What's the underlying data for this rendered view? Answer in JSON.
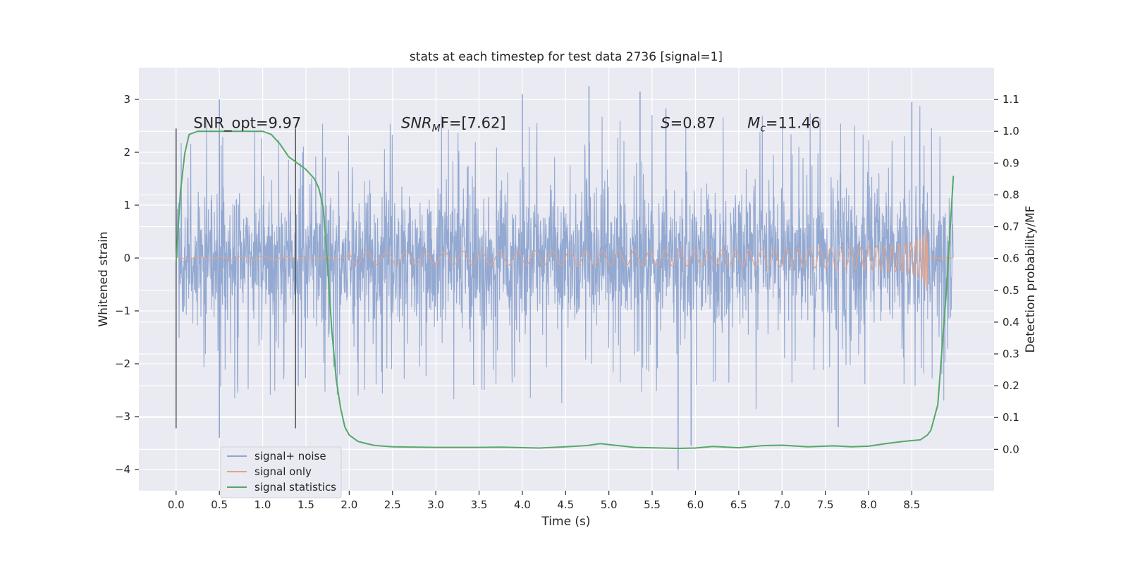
{
  "chart_data": {
    "type": "line",
    "title": "stats at each timestep for test data 2736 [signal=1]",
    "xlabel": "Time (s)",
    "ylabel": "Whitened strain",
    "y2label": "Detection probability/MF",
    "xlim": [
      -0.43,
      9.45
    ],
    "ylim": [
      -4.4,
      3.6
    ],
    "y2lim": [
      -0.13,
      1.2
    ],
    "x_ticks": [
      0.0,
      0.5,
      1.0,
      1.5,
      2.0,
      2.5,
      3.0,
      3.5,
      4.0,
      4.5,
      5.0,
      5.5,
      6.0,
      6.5,
      7.0,
      7.5,
      8.0,
      8.5
    ],
    "x_tick_labels": [
      "0.0",
      "0.5",
      "1.0",
      "1.5",
      "2.0",
      "2.5",
      "3.0",
      "3.5",
      "4.0",
      "4.5",
      "5.0",
      "5.5",
      "6.0",
      "6.5",
      "7.0",
      "7.5",
      "8.0",
      "8.5"
    ],
    "y_ticks": [
      3,
      2,
      1,
      0,
      -1,
      -2,
      -3,
      -4
    ],
    "y_tick_labels": [
      "3",
      "2",
      "1",
      "0",
      "−1",
      "−2",
      "−3",
      "−4"
    ],
    "y2_ticks": [
      1.1,
      1.0,
      0.9,
      0.8,
      0.7,
      0.6,
      0.5,
      0.4,
      0.3,
      0.2,
      0.1,
      0.0
    ],
    "y2_tick_labels": [
      "1.1",
      "1.0",
      "0.9",
      "0.8",
      "0.7",
      "0.6",
      "0.5",
      "0.4",
      "0.3",
      "0.2",
      "0.1",
      "0.0"
    ],
    "grid": true,
    "legend_position": "lower-left",
    "colors": {
      "background": "#eaeaf2",
      "grid": "#ffffff",
      "noise": "#8fa5cf",
      "signal": "#e1a38a",
      "stats": "#55a868",
      "vline": "#555555"
    },
    "series": [
      {
        "name": "signal+ noise",
        "axis": "left",
        "description_range": "noise fills roughly -1.3..1.3 with spikes to about -4.0 and 3.2",
        "peaks": [
          {
            "x": 0.5,
            "y": 3.0
          },
          {
            "x": 0.5,
            "y": -3.4
          },
          {
            "x": 4.0,
            "y": 3.1
          },
          {
            "x": 4.77,
            "y": 3.25
          },
          {
            "x": 5.36,
            "y": 3.15
          },
          {
            "x": 5.8,
            "y": -4.0
          },
          {
            "x": 5.95,
            "y": -3.55
          },
          {
            "x": 7.65,
            "y": -3.2
          },
          {
            "x": 8.5,
            "y": 2.95
          }
        ]
      },
      {
        "name": "signal only",
        "axis": "left",
        "chirp_start": 4.5,
        "chirp_end": 8.68,
        "peak_amplitude": 1.5
      },
      {
        "name": "signal statistics",
        "axis": "right",
        "x": [
          0.0,
          0.05,
          0.1,
          0.15,
          0.25,
          0.5,
          0.8,
          1.0,
          1.1,
          1.2,
          1.3,
          1.4,
          1.5,
          1.6,
          1.65,
          1.7,
          1.75,
          1.8,
          1.85,
          1.9,
          1.95,
          2.0,
          2.1,
          2.2,
          2.3,
          2.5,
          3.0,
          3.5,
          3.75,
          4.2,
          4.5,
          4.75,
          4.9,
          5.0,
          5.3,
          5.8,
          6.0,
          6.2,
          6.5,
          6.8,
          7.0,
          7.3,
          7.6,
          7.8,
          8.0,
          8.2,
          8.4,
          8.6,
          8.68,
          8.72,
          8.8,
          8.9,
          8.98
        ],
        "values": [
          0.59,
          0.81,
          0.93,
          0.99,
          1.0,
          1.0,
          1.0,
          1.0,
          0.99,
          0.96,
          0.92,
          0.9,
          0.88,
          0.85,
          0.82,
          0.76,
          0.58,
          0.37,
          0.22,
          0.13,
          0.07,
          0.045,
          0.025,
          0.018,
          0.012,
          0.008,
          0.006,
          0.006,
          0.007,
          0.004,
          0.008,
          0.012,
          0.018,
          0.015,
          0.006,
          0.003,
          0.004,
          0.009,
          0.005,
          0.012,
          0.013,
          0.008,
          0.011,
          0.008,
          0.01,
          0.018,
          0.025,
          0.03,
          0.045,
          0.06,
          0.14,
          0.5,
          0.86
        ]
      }
    ],
    "vertical_lines": [
      {
        "x": 0.0,
        "y_from": -3.22,
        "y_to": 2.45
      },
      {
        "x": 1.38,
        "y_from": -3.22,
        "y_to": 2.45
      }
    ],
    "annotations": [
      {
        "x": 0.2,
        "y": 2.45,
        "prefix": "SNR_opt=9.97",
        "sub": "",
        "suffix": ""
      },
      {
        "x": 2.6,
        "y": 2.45,
        "prefix": "SNR",
        "sub": "M",
        "suffix": "F=[7.62]"
      },
      {
        "x": 5.6,
        "y": 2.45,
        "prefix": "S",
        "sub": "",
        "suffix": "=0.87"
      },
      {
        "x": 6.6,
        "y": 2.45,
        "prefix": "M",
        "sub": "c",
        "suffix": "=11.46"
      }
    ]
  }
}
